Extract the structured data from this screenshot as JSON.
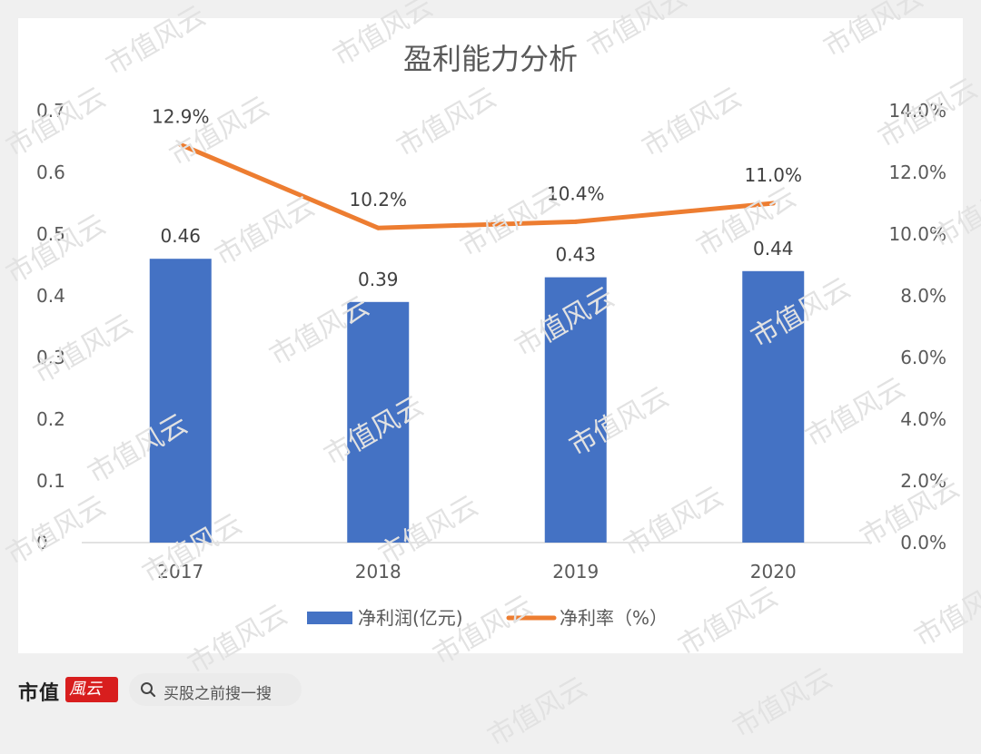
{
  "brand": {
    "name": "市值",
    "mark": "風云"
  },
  "search": {
    "placeholder": "买股之前搜一搜"
  },
  "watermark_text": "市值风云",
  "colors": {
    "bar": "#4472c4",
    "line": "#ed7d31",
    "grid": "#d9d9d9",
    "axis_text": "#595959"
  },
  "chart_data": {
    "type": "bar",
    "title": "盈利能力分析",
    "categories": [
      "2017",
      "2018",
      "2019",
      "2020"
    ],
    "series": [
      {
        "name": "净利润(亿元)",
        "type": "bar",
        "axis": "left",
        "values": [
          0.46,
          0.39,
          0.43,
          0.44
        ],
        "labels": [
          "0.46",
          "0.39",
          "0.43",
          "0.44"
        ]
      },
      {
        "name": "净利率（%）",
        "type": "line",
        "axis": "right",
        "values": [
          12.9,
          10.2,
          10.4,
          11.0
        ],
        "labels": [
          "12.9%",
          "10.2%",
          "10.4%",
          "11.0%"
        ]
      }
    ],
    "y_left": {
      "min": 0,
      "max": 0.7,
      "ticks": [
        "0",
        "0.1",
        "0.2",
        "0.3",
        "0.4",
        "0.5",
        "0.6",
        "0.7"
      ]
    },
    "y_right": {
      "min": 0,
      "max": 14,
      "ticks": [
        "0.0%",
        "2.0%",
        "4.0%",
        "6.0%",
        "8.0%",
        "10.0%",
        "12.0%",
        "14.0%"
      ]
    },
    "grid": false,
    "legend": "bottom"
  }
}
